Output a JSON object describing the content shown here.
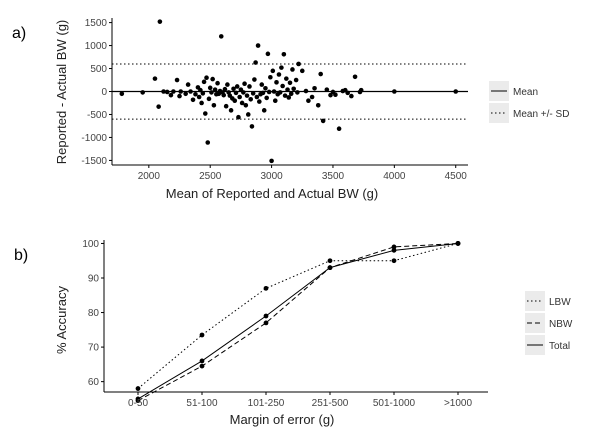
{
  "chart_data": [
    {
      "panel_label": "a)",
      "type": "scatter",
      "xlabel": "Mean of Reported and Actual BW (g)",
      "ylabel": "Reported - Actual BW (g)",
      "xlim": [
        1700,
        4600
      ],
      "ylim": [
        -1600,
        1600
      ],
      "x_ticks": [
        2000,
        2500,
        3000,
        3500,
        4000,
        4500
      ],
      "y_ticks": [
        -1500,
        -1000,
        -500,
        0,
        500,
        1000,
        1500
      ],
      "hlines": [
        {
          "name": "Mean",
          "value": 0,
          "style": "solid"
        },
        {
          "name": "Mean +/- SD",
          "value": 600,
          "style": "dotted"
        },
        {
          "name": "Mean +/- SD",
          "value": -600,
          "style": "dotted"
        }
      ],
      "legend": {
        "placement": "right",
        "entries": [
          {
            "label": "Mean",
            "style": "solid"
          },
          {
            "label": "Mean +/- SD",
            "style": "dotted"
          }
        ]
      },
      "grid": false,
      "points": [
        [
          1780,
          -50
        ],
        [
          1950,
          -20
        ],
        [
          2050,
          280
        ],
        [
          2080,
          -330
        ],
        [
          2090,
          1520
        ],
        [
          2120,
          0
        ],
        [
          2150,
          -10
        ],
        [
          2180,
          -80
        ],
        [
          2200,
          0
        ],
        [
          2230,
          250
        ],
        [
          2250,
          -100
        ],
        [
          2260,
          0
        ],
        [
          2300,
          -50
        ],
        [
          2320,
          150
        ],
        [
          2340,
          0
        ],
        [
          2360,
          -180
        ],
        [
          2380,
          -60
        ],
        [
          2400,
          90
        ],
        [
          2410,
          -120
        ],
        [
          2420,
          30
        ],
        [
          2430,
          -250
        ],
        [
          2440,
          -40
        ],
        [
          2450,
          210
        ],
        [
          2460,
          -480
        ],
        [
          2470,
          300
        ],
        [
          2480,
          -1110
        ],
        [
          2490,
          -160
        ],
        [
          2500,
          80
        ],
        [
          2510,
          -20
        ],
        [
          2520,
          270
        ],
        [
          2530,
          -300
        ],
        [
          2540,
          40
        ],
        [
          2550,
          -60
        ],
        [
          2560,
          180
        ],
        [
          2570,
          -50
        ],
        [
          2580,
          10
        ],
        [
          2590,
          1200
        ],
        [
          2600,
          -20
        ],
        [
          2610,
          -80
        ],
        [
          2620,
          50
        ],
        [
          2630,
          -320
        ],
        [
          2640,
          150
        ],
        [
          2650,
          -20
        ],
        [
          2660,
          -90
        ],
        [
          2670,
          -410
        ],
        [
          2680,
          -150
        ],
        [
          2690,
          60
        ],
        [
          2700,
          -200
        ],
        [
          2710,
          -30
        ],
        [
          2720,
          110
        ],
        [
          2730,
          -560
        ],
        [
          2740,
          -120
        ],
        [
          2750,
          40
        ],
        [
          2760,
          -250
        ],
        [
          2770,
          -20
        ],
        [
          2780,
          170
        ],
        [
          2790,
          -300
        ],
        [
          2800,
          -90
        ],
        [
          2810,
          -500
        ],
        [
          2820,
          110
        ],
        [
          2830,
          -170
        ],
        [
          2840,
          -760
        ],
        [
          2850,
          -40
        ],
        [
          2860,
          260
        ],
        [
          2870,
          630
        ],
        [
          2880,
          -120
        ],
        [
          2890,
          1000
        ],
        [
          2900,
          -220
        ],
        [
          2910,
          -60
        ],
        [
          2920,
          150
        ],
        [
          2930,
          -30
        ],
        [
          2940,
          -410
        ],
        [
          2950,
          70
        ],
        [
          2960,
          -140
        ],
        [
          2970,
          820
        ],
        [
          2980,
          -10
        ],
        [
          2990,
          310
        ],
        [
          3000,
          -1510
        ],
        [
          3010,
          450
        ],
        [
          3020,
          0
        ],
        [
          3030,
          -200
        ],
        [
          3040,
          200
        ],
        [
          3050,
          -60
        ],
        [
          3060,
          370
        ],
        [
          3070,
          -20
        ],
        [
          3080,
          520
        ],
        [
          3090,
          120
        ],
        [
          3100,
          810
        ],
        [
          3110,
          -90
        ],
        [
          3120,
          280
        ],
        [
          3130,
          40
        ],
        [
          3140,
          -130
        ],
        [
          3150,
          190
        ],
        [
          3160,
          -50
        ],
        [
          3170,
          480
        ],
        [
          3180,
          60
        ],
        [
          3200,
          250
        ],
        [
          3210,
          -20
        ],
        [
          3220,
          600
        ],
        [
          3250,
          450
        ],
        [
          3280,
          10
        ],
        [
          3300,
          -200
        ],
        [
          3330,
          -120
        ],
        [
          3350,
          70
        ],
        [
          3380,
          -300
        ],
        [
          3400,
          380
        ],
        [
          3420,
          -640
        ],
        [
          3450,
          40
        ],
        [
          3480,
          -80
        ],
        [
          3500,
          -10
        ],
        [
          3520,
          -70
        ],
        [
          3550,
          -810
        ],
        [
          3580,
          10
        ],
        [
          3600,
          30
        ],
        [
          3620,
          -30
        ],
        [
          3650,
          -100
        ],
        [
          3680,
          320
        ],
        [
          3720,
          -10
        ],
        [
          3730,
          30
        ],
        [
          4000,
          0
        ],
        [
          4500,
          0
        ]
      ]
    },
    {
      "panel_label": "b)",
      "type": "line",
      "xlabel": "Margin of error (g)",
      "ylabel": "% Accuracy",
      "categories": [
        "0-50",
        "51-100",
        "101-250",
        "251-500",
        "501-1000",
        ">1000"
      ],
      "ylim": [
        57,
        101
      ],
      "y_ticks": [
        60,
        70,
        80,
        90,
        100
      ],
      "grid": false,
      "legend": {
        "placement": "right",
        "entries": [
          {
            "label": "LBW",
            "style": "dotted"
          },
          {
            "label": "NBW",
            "style": "dashed"
          },
          {
            "label": "Total",
            "style": "solid"
          }
        ]
      },
      "series": [
        {
          "name": "LBW",
          "style": "dotted",
          "values": [
            58,
            73.5,
            87,
            95,
            95,
            100
          ]
        },
        {
          "name": "NBW",
          "style": "dashed",
          "values": [
            54.5,
            64.5,
            77,
            93,
            99,
            100
          ]
        },
        {
          "name": "Total",
          "style": "solid",
          "values": [
            55,
            66,
            79,
            93,
            98,
            100
          ]
        }
      ]
    }
  ]
}
